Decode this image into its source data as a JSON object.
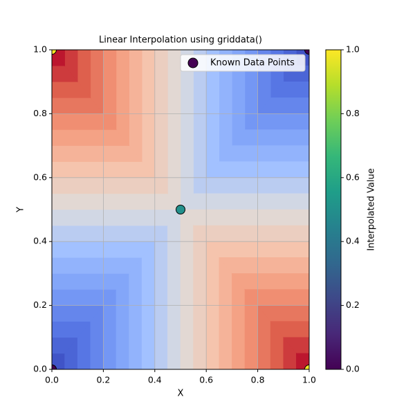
{
  "chart_data": {
    "type": "contour",
    "title": "Linear Interpolation using griddata()",
    "xlabel": "X",
    "ylabel": "Y",
    "points": {
      "name": "Known Data Points",
      "x": [
        0,
        1,
        0,
        1,
        0.5
      ],
      "y": [
        0,
        1,
        1,
        0,
        0.5
      ],
      "values": [
        0,
        0,
        1,
        1,
        0.5
      ]
    },
    "levels": 20,
    "colormap": "coolwarm",
    "point_colormap": "viridis",
    "xlim": [
      0,
      1
    ],
    "ylim": [
      0,
      1
    ],
    "xticks": [
      {
        "value": 0,
        "label": "0.0"
      },
      {
        "value": 0.2,
        "label": "0.2"
      },
      {
        "value": 0.4,
        "label": "0.4"
      },
      {
        "value": 0.6,
        "label": "0.6"
      },
      {
        "value": 0.8,
        "label": "0.8"
      },
      {
        "value": 1,
        "label": "1.0"
      }
    ],
    "yticks": [
      {
        "value": 0,
        "label": "0.0"
      },
      {
        "value": 0.2,
        "label": "0.2"
      },
      {
        "value": 0.4,
        "label": "0.4"
      },
      {
        "value": 0.6,
        "label": "0.6"
      },
      {
        "value": 0.8,
        "label": "0.8"
      },
      {
        "value": 1,
        "label": "1.0"
      }
    ],
    "colorbar": {
      "label": "Interpolated Value",
      "lim": [
        0,
        1
      ],
      "ticks": [
        {
          "value": 0,
          "label": "0.0"
        },
        {
          "value": 0.2,
          "label": "0.2"
        },
        {
          "value": 0.4,
          "label": "0.4"
        },
        {
          "value": 0.6,
          "label": "0.6"
        },
        {
          "value": 0.8,
          "label": "0.8"
        },
        {
          "value": 1,
          "label": "1.0"
        }
      ]
    },
    "grid": true,
    "legend": "upper right"
  }
}
